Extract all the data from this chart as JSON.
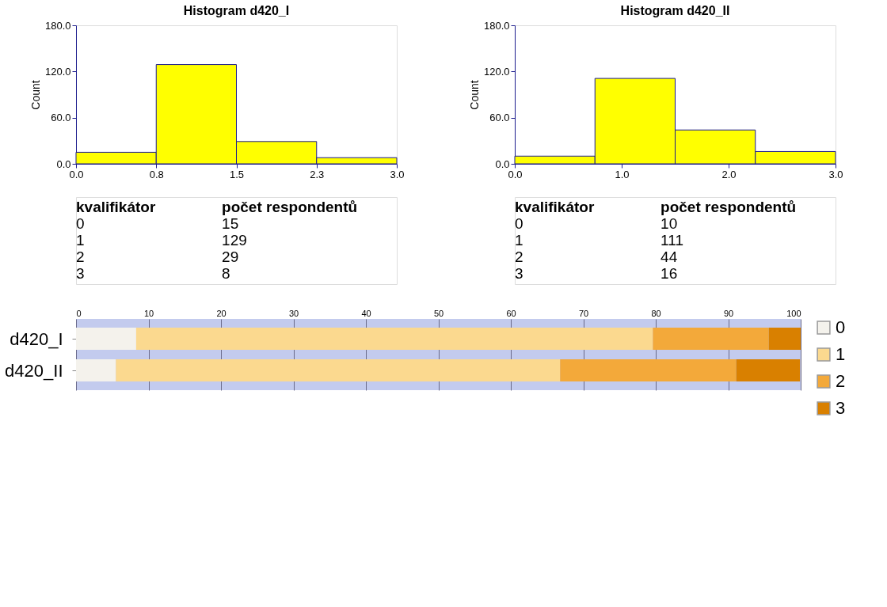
{
  "chart_data": [
    {
      "type": "histogram",
      "title": "Histogram d420_I",
      "ylabel": "Count",
      "bins": [
        0,
        0.75,
        1.5,
        2.25,
        3.0
      ],
      "values": [
        15,
        129,
        29,
        8
      ],
      "color": "#ffff00",
      "xlim": [
        0,
        3.0
      ],
      "xticks": [
        {
          "value": 0,
          "label": "0.0"
        },
        {
          "value": 0.75,
          "label": "0.8"
        },
        {
          "value": 1.5,
          "label": "1.5"
        },
        {
          "value": 2.25,
          "label": "2.3"
        },
        {
          "value": 3.0,
          "label": "3.0"
        }
      ],
      "ylim": [
        0,
        180
      ],
      "yticks": [
        {
          "value": 0,
          "label": "0.0"
        },
        {
          "value": 60,
          "label": "60.0"
        },
        {
          "value": 120,
          "label": "120.0"
        },
        {
          "value": 180,
          "label": "180.0"
        }
      ],
      "grid": false,
      "annotations": [
        "kvalifikátor",
        "počet respondentů",
        "0",
        "15",
        "1",
        "129",
        "2",
        "29",
        "3",
        "8"
      ]
    },
    {
      "type": "histogram",
      "title": "Histogram d420_II",
      "ylabel": "Count",
      "bins": [
        0,
        0.75,
        1.5,
        2.25,
        3.0
      ],
      "values": [
        10,
        111,
        44,
        16
      ],
      "color": "#ffff00",
      "xlim": [
        0,
        3.0
      ],
      "xticks": [
        {
          "value": 0,
          "label": "0.0"
        },
        {
          "value": 1,
          "label": "1.0"
        },
        {
          "value": 2,
          "label": "2.0"
        },
        {
          "value": 3,
          "label": "3.0"
        }
      ],
      "ylim": [
        0,
        180
      ],
      "yticks": [
        {
          "value": 0,
          "label": "0.0"
        },
        {
          "value": 60,
          "label": "60.0"
        },
        {
          "value": 120,
          "label": "120.0"
        },
        {
          "value": 180,
          "label": "180.0"
        }
      ],
      "grid": false,
      "annotations": [
        "kvalifikátor",
        "počet respondentů",
        "0",
        "10",
        "1",
        "111",
        "2",
        "44",
        "3",
        "16"
      ]
    },
    {
      "type": "bar",
      "orientation": "horizontal",
      "stacked": true,
      "categories": [
        "d420_I",
        "d420_II"
      ],
      "series": [
        {
          "name": "0",
          "color": "#f4f2ec",
          "values": [
            8.3,
            5.5
          ]
        },
        {
          "name": "1",
          "color": "#fbd98f",
          "values": [
            71.3,
            61.3
          ]
        },
        {
          "name": "2",
          "color": "#f3a93a",
          "values": [
            16.0,
            24.3
          ]
        },
        {
          "name": "3",
          "color": "#d98000",
          "values": [
            4.4,
            8.8
          ]
        }
      ],
      "xlim": [
        0,
        100
      ],
      "xticks": [
        0,
        10,
        20,
        30,
        40,
        50,
        60,
        70,
        80,
        90,
        100
      ],
      "grid": "x",
      "legend": "right"
    }
  ]
}
